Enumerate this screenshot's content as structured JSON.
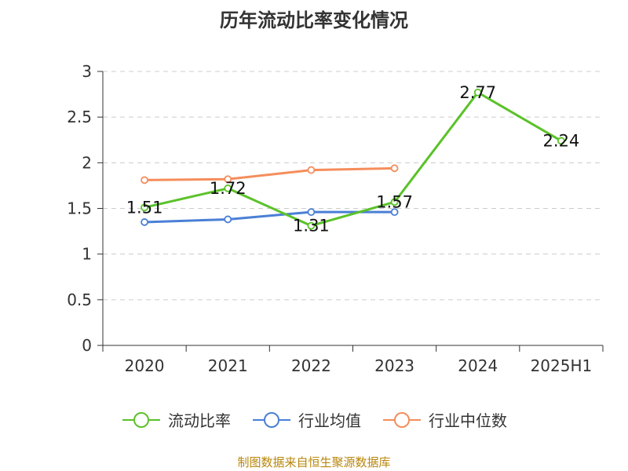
{
  "chart_data": {
    "type": "line",
    "title": "历年流动比率变化情况",
    "categories": [
      "2020",
      "2021",
      "2022",
      "2023",
      "2024",
      "2025H1"
    ],
    "ylim": [
      0,
      3
    ],
    "yticks": [
      "0",
      "0.5",
      "1",
      "1.5",
      "2",
      "2.5",
      "3"
    ],
    "grid": true,
    "legend_position": "bottom",
    "series": [
      {
        "name": "流动比率",
        "color": "#5ac229",
        "values": [
          1.51,
          1.72,
          1.31,
          1.57,
          2.77,
          2.24
        ],
        "labels": [
          "1.51",
          "1.72",
          "1.31",
          "1.57",
          "2.77",
          "2.24"
        ]
      },
      {
        "name": "行业均值",
        "color": "#4a7fd6",
        "values": [
          1.35,
          1.38,
          1.46,
          1.46,
          null,
          null
        ]
      },
      {
        "name": "行业中位数",
        "color": "#f58d5b",
        "values": [
          1.81,
          1.82,
          1.92,
          1.94,
          null,
          null
        ]
      }
    ]
  },
  "source": "制图数据来自恒生聚源数据库"
}
